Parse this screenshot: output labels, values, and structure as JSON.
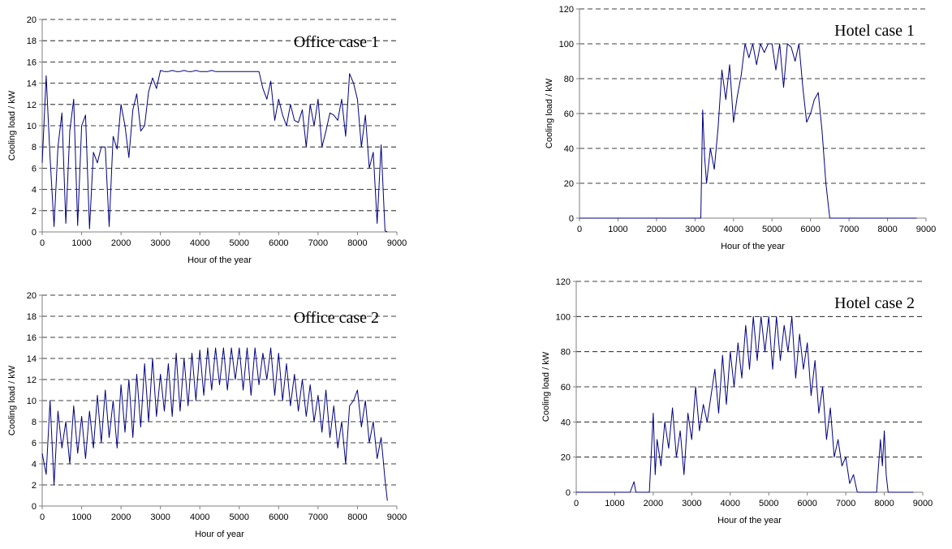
{
  "chart_data": [
    {
      "type": "line",
      "title": "Office case 1",
      "xlabel": "Hour of the year",
      "ylabel": "Cooling load / kW",
      "xlim": [
        0,
        9000
      ],
      "ylim": [
        0,
        20
      ],
      "xticks": [
        "0",
        "1000",
        "2000",
        "3000",
        "4000",
        "5000",
        "6000",
        "7000",
        "8000",
        "9000"
      ],
      "yticks": [
        "0",
        "2",
        "4",
        "6",
        "8",
        "10",
        "12",
        "14",
        "16",
        "18",
        "20"
      ],
      "grid": true,
      "color": "#000080",
      "series": [
        {
          "x": [
            0,
            100,
            200,
            300,
            400,
            500,
            600,
            700,
            800,
            900,
            1000,
            1100,
            1200,
            1300,
            1400,
            1500,
            1600,
            1700,
            1800,
            1900,
            2000,
            2100,
            2200,
            2300,
            2400,
            2500,
            2600,
            2700,
            2800,
            2900,
            3000,
            3100,
            3200,
            3300,
            3400,
            3500,
            3600,
            3700,
            3800,
            3900,
            4000,
            4100,
            4200,
            4300,
            4400,
            4500,
            4600,
            4700,
            4800,
            4900,
            5000,
            5100,
            5200,
            5300,
            5400,
            5500,
            5600,
            5700,
            5800,
            5900,
            6000,
            6100,
            6200,
            6300,
            6400,
            6500,
            6600,
            6700,
            6800,
            6900,
            7000,
            7100,
            7200,
            7300,
            7400,
            7500,
            7600,
            7700,
            7800,
            7900,
            8000,
            8100,
            8200,
            8300,
            8400,
            8500,
            8600,
            8700,
            8760
          ],
          "y": [
            6.5,
            14.7,
            7.0,
            0.5,
            8.0,
            11.2,
            0.8,
            9.5,
            12.5,
            0.6,
            10.0,
            11.0,
            0.3,
            7.5,
            6.5,
            8.0,
            8.0,
            0.5,
            9.0,
            7.8,
            12.0,
            10.0,
            7.0,
            11.5,
            13.0,
            9.5,
            10.0,
            13.2,
            14.5,
            13.5,
            15.2,
            15.1,
            15.1,
            15.2,
            15.1,
            15.1,
            15.2,
            15.1,
            15.1,
            15.2,
            15.1,
            15.1,
            15.1,
            15.2,
            15.1,
            15.1,
            15.1,
            15.1,
            15.1,
            15.1,
            15.1,
            15.1,
            15.1,
            15.1,
            15.1,
            15.1,
            13.5,
            12.5,
            14.2,
            10.5,
            12.5,
            11.0,
            10.0,
            12.0,
            10.5,
            10.3,
            11.5,
            8.0,
            12.0,
            10.0,
            12.5,
            8.0,
            9.5,
            11.2,
            11.0,
            10.5,
            12.5,
            9.0,
            14.9,
            14.0,
            12.5,
            8.0,
            11.0,
            6.0,
            7.5,
            0.8,
            8.2,
            0.1,
            0.0
          ]
        }
      ]
    },
    {
      "type": "line",
      "title": "Hotel case 1",
      "xlabel": "Hour of the year",
      "ylabel": "Cooling load / kW",
      "xlim": [
        0,
        9000
      ],
      "ylim": [
        0,
        120
      ],
      "xticks": [
        "0",
        "1000",
        "2000",
        "3000",
        "4000",
        "5000",
        "6000",
        "7000",
        "8000",
        "9000"
      ],
      "yticks": [
        "0",
        "20",
        "40",
        "60",
        "80",
        "100",
        "120"
      ],
      "grid": true,
      "color": "#000080",
      "series": [
        {
          "x": [
            0,
            500,
            1000,
            1500,
            2000,
            2500,
            3000,
            3150,
            3200,
            3250,
            3300,
            3400,
            3500,
            3600,
            3700,
            3800,
            3900,
            4000,
            4100,
            4200,
            4300,
            4400,
            4500,
            4600,
            4700,
            4800,
            4900,
            5000,
            5100,
            5200,
            5300,
            5400,
            5500,
            5600,
            5700,
            5800,
            5900,
            6000,
            6100,
            6200,
            6300,
            6400,
            6500,
            7000,
            7500,
            8000,
            8500,
            8760
          ],
          "y": [
            0,
            0,
            0,
            0,
            0,
            0,
            0,
            0,
            62,
            35,
            20,
            40,
            28,
            52,
            85,
            68,
            88,
            55,
            70,
            82,
            100,
            92,
            100,
            88,
            100,
            95,
            100,
            100,
            85,
            100,
            75,
            100,
            98,
            90,
            100,
            75,
            55,
            60,
            68,
            72,
            50,
            20,
            0,
            0,
            0,
            0,
            0,
            0
          ]
        }
      ]
    },
    {
      "type": "line",
      "title": "Office case 2",
      "xlabel": "Hour of year",
      "ylabel": "Cooling load / kW",
      "xlim": [
        0,
        9000
      ],
      "ylim": [
        0,
        20
      ],
      "xticks": [
        "0",
        "1000",
        "2000",
        "3000",
        "4000",
        "5000",
        "6000",
        "7000",
        "8000",
        "9000"
      ],
      "yticks": [
        "0",
        "2",
        "4",
        "6",
        "8",
        "10",
        "12",
        "14",
        "16",
        "18",
        "20"
      ],
      "grid": true,
      "color": "#000080",
      "series": [
        {
          "x": [
            0,
            100,
            200,
            300,
            400,
            500,
            600,
            700,
            800,
            900,
            1000,
            1100,
            1200,
            1300,
            1400,
            1500,
            1600,
            1700,
            1800,
            1900,
            2000,
            2100,
            2200,
            2300,
            2400,
            2500,
            2600,
            2700,
            2800,
            2900,
            3000,
            3100,
            3200,
            3300,
            3400,
            3500,
            3600,
            3700,
            3800,
            3900,
            4000,
            4100,
            4200,
            4300,
            4400,
            4500,
            4600,
            4700,
            4800,
            4900,
            5000,
            5100,
            5200,
            5300,
            5400,
            5500,
            5600,
            5700,
            5800,
            5900,
            6000,
            6100,
            6200,
            6300,
            6400,
            6500,
            6600,
            6700,
            6800,
            6900,
            7000,
            7100,
            7200,
            7300,
            7400,
            7500,
            7600,
            7700,
            7800,
            7900,
            8000,
            8100,
            8200,
            8300,
            8400,
            8500,
            8600,
            8700,
            8760
          ],
          "y": [
            5.0,
            3.0,
            10.0,
            2.0,
            9.0,
            5.5,
            8.0,
            4.0,
            9.5,
            5.0,
            8.5,
            4.5,
            9.0,
            5.5,
            10.5,
            6.0,
            11.0,
            6.5,
            10.0,
            5.5,
            11.5,
            7.0,
            12.0,
            6.5,
            12.5,
            7.5,
            13.5,
            8.0,
            14.0,
            8.5,
            12.5,
            9.0,
            13.5,
            8.5,
            14.5,
            9.0,
            14.0,
            9.5,
            14.5,
            10.0,
            14.8,
            10.5,
            15.0,
            11.0,
            15.0,
            11.5,
            15.0,
            11.0,
            15.0,
            12.0,
            15.0,
            11.0,
            15.0,
            10.5,
            15.0,
            11.5,
            14.5,
            12.0,
            15.0,
            10.5,
            14.5,
            10.0,
            13.5,
            9.5,
            12.5,
            9.0,
            12.0,
            8.5,
            11.5,
            8.0,
            10.5,
            7.0,
            11.0,
            6.5,
            9.5,
            5.5,
            8.0,
            4.0,
            9.5,
            10.0,
            11.0,
            7.5,
            10.0,
            6.0,
            8.0,
            4.5,
            6.5,
            2.5,
            0.5
          ]
        }
      ]
    },
    {
      "type": "line",
      "title": "Hotel case 2",
      "xlabel": "Hour of the year",
      "ylabel": "Cooling load / kW",
      "xlim": [
        0,
        9000
      ],
      "ylim": [
        0,
        120
      ],
      "xticks": [
        "0",
        "1000",
        "2000",
        "3000",
        "4000",
        "5000",
        "6000",
        "7000",
        "8000",
        "9000"
      ],
      "yticks": [
        "0",
        "20",
        "40",
        "60",
        "80",
        "100",
        "120"
      ],
      "grid": true,
      "color": "#000080",
      "series": [
        {
          "x": [
            0,
            500,
            1000,
            1400,
            1500,
            1550,
            1600,
            1900,
            2000,
            2050,
            2100,
            2200,
            2300,
            2400,
            2500,
            2600,
            2700,
            2800,
            2900,
            3000,
            3100,
            3200,
            3300,
            3400,
            3500,
            3600,
            3700,
            3800,
            3900,
            4000,
            4100,
            4200,
            4300,
            4400,
            4500,
            4600,
            4700,
            4800,
            4900,
            5000,
            5100,
            5200,
            5300,
            5400,
            5500,
            5600,
            5700,
            5800,
            5900,
            6000,
            6100,
            6200,
            6300,
            6400,
            6500,
            6600,
            6700,
            6800,
            6900,
            7000,
            7100,
            7200,
            7300,
            7400,
            7500,
            7800,
            7900,
            7950,
            8000,
            8050,
            8100,
            8200,
            8500,
            8760
          ],
          "y": [
            0,
            0,
            0,
            0,
            6,
            0,
            0,
            0,
            45,
            10,
            30,
            15,
            40,
            25,
            48,
            20,
            35,
            10,
            45,
            30,
            60,
            35,
            50,
            40,
            55,
            70,
            45,
            78,
            50,
            80,
            60,
            85,
            65,
            95,
            70,
            100,
            75,
            100,
            80,
            100,
            70,
            100,
            75,
            95,
            80,
            100,
            65,
            90,
            70,
            85,
            55,
            75,
            45,
            60,
            30,
            48,
            20,
            30,
            15,
            20,
            5,
            10,
            0,
            0,
            0,
            0,
            30,
            15,
            35,
            10,
            0,
            0,
            0,
            0
          ]
        }
      ]
    }
  ]
}
